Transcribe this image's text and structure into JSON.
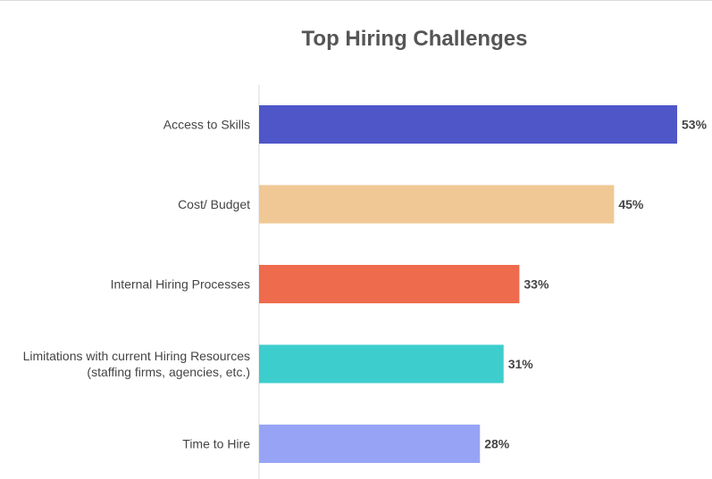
{
  "chart_data": {
    "type": "bar",
    "orientation": "horizontal",
    "title": "Top Hiring Challenges",
    "xlabel": "",
    "ylabel": "",
    "categories": [
      [
        "Access to Skills"
      ],
      [
        "Cost/ Budget"
      ],
      [
        "Internal Hiring Processes"
      ],
      [
        "Limitations with current Hiring Resources",
        "(staffing firms, agencies, etc.)"
      ],
      [
        "Time to Hire"
      ]
    ],
    "values": [
      53,
      45,
      33,
      31,
      28
    ],
    "value_labels": [
      "53%",
      "45%",
      "33%",
      "31%",
      "28%"
    ],
    "colors": [
      "#4f56c8",
      "#f0c896",
      "#ee6b4d",
      "#3ecdcd",
      "#97a4f5"
    ],
    "xlim": [
      0,
      53
    ],
    "grid": false,
    "legend": "none"
  }
}
